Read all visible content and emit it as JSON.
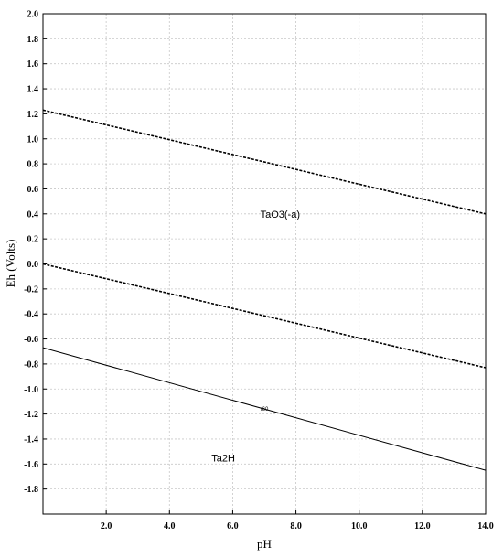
{
  "chart_data": {
    "type": "line",
    "xlabel": "pH",
    "ylabel": "Eh (Volts)",
    "xlim": [
      0,
      14
    ],
    "ylim": [
      -2.0,
      2.0
    ],
    "grid": true,
    "x_ticks": [
      "2.0",
      "4.0",
      "6.0",
      "8.0",
      "10.0",
      "12.0",
      "14.0"
    ],
    "x_tick_values": [
      2,
      4,
      6,
      8,
      10,
      12,
      14
    ],
    "y_ticks": [
      "2.0",
      "1.8",
      "1.6",
      "1.4",
      "1.2",
      "1.0",
      "0.8",
      "0.6",
      "0.4",
      "0.2",
      "0.0",
      "-0.2",
      "-0.4",
      "-0.6",
      "-0.8",
      "-1.0",
      "-1.2",
      "-1.4",
      "-1.6",
      "-1.8"
    ],
    "y_tick_values": [
      2.0,
      1.8,
      1.6,
      1.4,
      1.2,
      1.0,
      0.8,
      0.6,
      0.4,
      0.2,
      0.0,
      -0.2,
      -0.4,
      -0.6,
      -0.8,
      -1.0,
      -1.2,
      -1.4,
      -1.6,
      -1.8
    ],
    "series": [
      {
        "style": "dashed",
        "x": [
          0,
          14
        ],
        "y": [
          1.23,
          0.4
        ]
      },
      {
        "style": "dashed",
        "x": [
          0,
          14
        ],
        "y": [
          0.0,
          -0.83
        ]
      },
      {
        "style": "solid",
        "label": "r60",
        "x": [
          0,
          14
        ],
        "y": [
          -0.67,
          -1.65
        ]
      }
    ],
    "regions": [
      {
        "label": "TaO3(-a)",
        "x": 7.5,
        "y": 0.4
      },
      {
        "label": "Ta2H",
        "x": 5.7,
        "y": -1.55
      }
    ],
    "line_label": {
      "text": "r60",
      "x": 7.0,
      "y": -1.16
    }
  }
}
